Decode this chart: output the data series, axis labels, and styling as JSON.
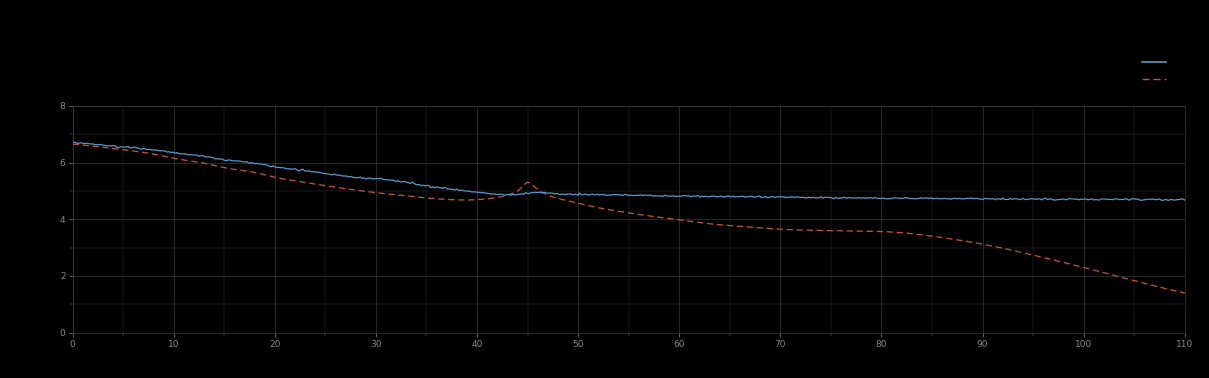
{
  "background_color": "#000000",
  "plot_bg_color": "#000000",
  "grid_color": "#3a3a3a",
  "tick_color": "#888888",
  "blue_line_color": "#5599cc",
  "red_line_color": "#cc5533",
  "xlim": [
    0,
    110
  ],
  "ylim": [
    0,
    8
  ],
  "ytick_positions": [
    0,
    2,
    4,
    6,
    8
  ],
  "xtick_positions": [
    0,
    10,
    20,
    30,
    40,
    50,
    60,
    70,
    80,
    90,
    100,
    110
  ],
  "legend_label_blue": " ",
  "legend_label_red": " ",
  "figsize": [
    12.09,
    3.78
  ],
  "dpi": 100,
  "blue_x": [
    0,
    2,
    5,
    8,
    10,
    13,
    15,
    18,
    20,
    23,
    25,
    27,
    29,
    31,
    33,
    35,
    37,
    39,
    41,
    43,
    44,
    45,
    46,
    47,
    48,
    50,
    55,
    60,
    65,
    70,
    75,
    80,
    85,
    90,
    95,
    100,
    105,
    110
  ],
  "blue_y": [
    6.7,
    6.65,
    6.55,
    6.45,
    6.35,
    6.22,
    6.1,
    5.98,
    5.85,
    5.72,
    5.62,
    5.52,
    5.45,
    5.4,
    5.3,
    5.18,
    5.08,
    5.0,
    4.92,
    4.87,
    4.88,
    4.92,
    4.95,
    4.93,
    4.9,
    4.88,
    4.85,
    4.82,
    4.8,
    4.78,
    4.76,
    4.74,
    4.73,
    4.72,
    4.71,
    4.7,
    4.7,
    4.7
  ],
  "red_x": [
    0,
    2,
    5,
    8,
    10,
    13,
    15,
    18,
    20,
    23,
    25,
    27,
    29,
    31,
    33,
    35,
    37,
    39,
    41,
    43,
    44,
    44.5,
    45,
    45.5,
    46,
    47,
    49,
    51,
    54,
    57,
    60,
    63,
    66,
    69,
    72,
    75,
    78,
    81,
    84,
    87,
    90,
    93,
    96,
    100,
    103,
    107,
    110
  ],
  "red_y": [
    6.65,
    6.58,
    6.45,
    6.3,
    6.15,
    5.98,
    5.82,
    5.65,
    5.48,
    5.3,
    5.18,
    5.08,
    4.98,
    4.9,
    4.82,
    4.75,
    4.7,
    4.68,
    4.72,
    4.85,
    5.0,
    5.15,
    5.3,
    5.2,
    5.05,
    4.85,
    4.65,
    4.48,
    4.28,
    4.12,
    3.98,
    3.84,
    3.75,
    3.67,
    3.62,
    3.6,
    3.58,
    3.55,
    3.45,
    3.3,
    3.12,
    2.9,
    2.65,
    2.3,
    2.02,
    1.65,
    1.4
  ]
}
